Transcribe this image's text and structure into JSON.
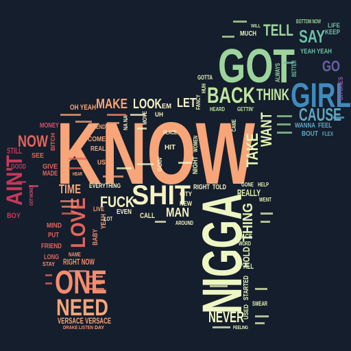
{
  "background": "#151e2c",
  "palette": {
    "peach": "#f7a579",
    "salmon": "#f58c6e",
    "coral": "#e3645a",
    "crimson": "#c8385a",
    "rose": "#d94f6b",
    "cream": "#f5f2c4",
    "mint": "#e6f5b8",
    "lime": "#c0e6a0",
    "green": "#9cd49c",
    "teal": "#6cbfa6",
    "sky": "#5ea8c4",
    "blue": "#3f8bbd",
    "purple": "#6a5fa8",
    "violet": "#8c5aa0"
  },
  "words": [
    {
      "text": "KNOW",
      "color": "#f7a579"
    },
    {
      "text": "NIGGA",
      "color": "#eef7c4"
    },
    {
      "text": "GOT",
      "color": "#9cd49c"
    },
    {
      "text": "GIRL",
      "color": "#3f8bbd"
    },
    {
      "text": "SHIT",
      "color": "#f5f2c4"
    },
    {
      "text": "ONE",
      "color": "#f58c6e"
    },
    {
      "text": "NEED",
      "color": "#f7a579"
    },
    {
      "text": "BACK",
      "color": "#c0e6a0"
    },
    {
      "text": "LOVE",
      "color": "#e3645a"
    },
    {
      "text": "AIN'T",
      "color": "#c8385a"
    },
    {
      "text": "CAUSE",
      "color": "#5ea8c4"
    },
    {
      "text": "NEVER",
      "color": "#eef7c4"
    },
    {
      "text": "THINK",
      "color": "#c0e6a0"
    },
    {
      "text": "TELL",
      "color": "#9cd49c"
    },
    {
      "text": "SAY",
      "color": "#6cbfa6"
    },
    {
      "text": "TAKE",
      "color": "#e6f5b8"
    },
    {
      "text": "WANT",
      "color": "#e6f5b8"
    },
    {
      "text": "FUCK",
      "color": "#f5f2c4"
    },
    {
      "text": "MAKE",
      "color": "#f7a579"
    },
    {
      "text": "LOOK",
      "color": "#f5f2c4"
    },
    {
      "text": "NOW",
      "color": "#e3645a"
    },
    {
      "text": "GO",
      "color": "#6a5fa8"
    },
    {
      "text": "LET",
      "color": "#f5f2c4"
    },
    {
      "text": "THING",
      "color": "#e6f5b8"
    },
    {
      "text": "REALLY",
      "color": "#e6f5b8"
    },
    {
      "text": "HOLD",
      "color": "#e6f5b8"
    },
    {
      "text": "MAN",
      "color": "#f5f2c4"
    },
    {
      "text": "TIME",
      "color": "#f7a579"
    },
    {
      "text": "RIGHT NOW",
      "color": "#f58c6e"
    },
    {
      "text": "VERSACE VERSACE",
      "color": "#f7a579"
    },
    {
      "text": "DRAKE LISTEN",
      "color": "#f58c6e"
    },
    {
      "text": "MONEY",
      "color": "#d94f6b"
    },
    {
      "text": "STILL",
      "color": "#c8385a"
    },
    {
      "text": "GOOD",
      "color": "#c8385a"
    },
    {
      "text": "BOY",
      "color": "#c8385a"
    },
    {
      "text": "OH YEAH",
      "color": "#f7a579"
    },
    {
      "text": "COME",
      "color": "#f7a579"
    },
    {
      "text": "REAL",
      "color": "#f7a579"
    },
    {
      "text": "END",
      "color": "#f7a579"
    },
    {
      "text": "US",
      "color": "#f7a579"
    },
    {
      "text": "GIVE",
      "color": "#e3645a"
    },
    {
      "text": "MADE",
      "color": "#e3645a"
    },
    {
      "text": "SEE",
      "color": "#e3645a"
    },
    {
      "text": "BITCH",
      "color": "#e3645a"
    },
    {
      "text": "MIND",
      "color": "#e3645a"
    },
    {
      "text": "PUT",
      "color": "#e3645a"
    },
    {
      "text": "FRIEND",
      "color": "#e3645a"
    },
    {
      "text": "LONG",
      "color": "#e3645a"
    },
    {
      "text": "STAY",
      "color": "#f58c6e"
    },
    {
      "text": "NAME",
      "color": "#f58c6e"
    },
    {
      "text": "BABY",
      "color": "#f58c6e"
    },
    {
      "text": "YEAH",
      "color": "#f7a579"
    },
    {
      "text": "LIVE",
      "color": "#f7a579"
    },
    {
      "text": "EVEN",
      "color": "#f5f2c4"
    },
    {
      "text": "CALL",
      "color": "#f5f2c4"
    },
    {
      "text": "HIT",
      "color": "#f5f2c4"
    },
    {
      "text": "PLACE",
      "color": "#f5f2c4"
    },
    {
      "text": "GOIN'",
      "color": "#f5f2c4"
    },
    {
      "text": "EVERYTHING",
      "color": "#f5f2c4"
    },
    {
      "text": "LOT",
      "color": "#f5f2c4"
    },
    {
      "text": "RIGHT",
      "color": "#f5f2c4"
    },
    {
      "text": "TOLD",
      "color": "#f5f2c4"
    },
    {
      "text": "CITY",
      "color": "#f5f2c4"
    },
    {
      "text": "NEW",
      "color": "#f5f2c4"
    },
    {
      "text": "AROUND",
      "color": "#f5f2c4"
    },
    {
      "text": "GOTTA",
      "color": "#e6f5b8"
    },
    {
      "text": "FANCY",
      "color": "#e6f5b8"
    },
    {
      "text": "HUH",
      "color": "#e6f5b8"
    },
    {
      "text": "HEARD",
      "color": "#c0e6a0"
    },
    {
      "text": "GETTIN'",
      "color": "#c0e6a0"
    },
    {
      "text": "NIGHT",
      "color": "#e6f5b8"
    },
    {
      "text": "WOMEN",
      "color": "#e6f5b8"
    },
    {
      "text": "FACE",
      "color": "#e6f5b8"
    },
    {
      "text": "WORD",
      "color": "#e6f5b8"
    },
    {
      "text": "Y'ALL",
      "color": "#e6f5b8"
    },
    {
      "text": "STARTED",
      "color": "#e6f5b8"
    },
    {
      "text": "SWEAR",
      "color": "#e6f5b8"
    },
    {
      "text": "USED",
      "color": "#e6f5b8"
    },
    {
      "text": "GONE",
      "color": "#e6f5b8"
    },
    {
      "text": "HELP",
      "color": "#e6f5b8"
    },
    {
      "text": "WENT",
      "color": "#e6f5b8"
    },
    {
      "text": "FEELING",
      "color": "#e6f5b8"
    },
    {
      "text": "BETTER",
      "color": "#6cbfa6"
    },
    {
      "text": "ALWAYS",
      "color": "#9cd49c"
    },
    {
      "text": "MUCH",
      "color": "#e6f5b8"
    },
    {
      "text": "WILL",
      "color": "#c0e6a0"
    },
    {
      "text": "BOTTOM NOW",
      "color": "#9cd49c"
    },
    {
      "text": "LIFE",
      "color": "#6cbfa6"
    },
    {
      "text": "KEEP",
      "color": "#6cbfa6"
    },
    {
      "text": "YEAH YEAH",
      "color": "#6cbfa6"
    },
    {
      "text": "BITCHES",
      "color": "#8c5aa0"
    },
    {
      "text": "WANNA",
      "color": "#5ea8c4"
    },
    {
      "text": "FEEL",
      "color": "#5ea8c4"
    },
    {
      "text": "BOUT",
      "color": "#5ea8c4"
    },
    {
      "text": "FLEX",
      "color": "#5ea8c4"
    },
    {
      "text": "UH",
      "color": "#f5f2c4"
    },
    {
      "text": "EM",
      "color": "#f5f2c4"
    },
    {
      "text": "NA NA",
      "color": "#f5f2c4"
    },
    {
      "text": "MOVE",
      "color": "#f5f2c4"
    },
    {
      "text": "HEAR",
      "color": "#f7a579"
    },
    {
      "text": "CAME",
      "color": "#e6f5b8"
    },
    {
      "text": "DAY",
      "color": "#f7a579"
    },
    {
      "text": "GOT MONEY",
      "color": "#d94f6b"
    }
  ]
}
